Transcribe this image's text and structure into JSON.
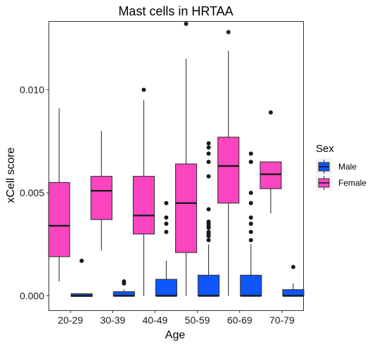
{
  "chart_data": {
    "type": "box",
    "title": "Mast cells in HRTAA",
    "xlabel": "Age",
    "ylabel": "xCell score",
    "categories": [
      "20-29",
      "30-39",
      "40-49",
      "50-59",
      "60-69",
      "70-79"
    ],
    "y_ticks": [
      0,
      0.005,
      0.01
    ],
    "y_tick_labels": [
      "0.000",
      "0.005",
      "0.010"
    ],
    "ylim": [
      -0.0007,
      0.0133
    ],
    "grid": false,
    "legend": {
      "title": "Sex",
      "placement": "right",
      "entries": [
        "Male",
        "Female"
      ]
    },
    "series": [
      {
        "name": "Male",
        "color": "#0f56fb",
        "boxes": [
          {
            "category": "20-29",
            "min": -3e-05,
            "q1": -3e-05,
            "median": 0,
            "q3": 0.0001,
            "max": 0.0001,
            "outliers": [
              0.0017
            ]
          },
          {
            "category": "30-39",
            "min": 0,
            "q1": 0,
            "median": 0,
            "q3": 0.0002,
            "max": 0.0003,
            "outliers": [
              0.0006,
              0.0007
            ]
          },
          {
            "category": "40-49",
            "min": 0,
            "q1": 0,
            "median": 0,
            "q3": 0.0008,
            "max": 0.0017,
            "outliers": [
              0.0031,
              0.0035,
              0.0038,
              0.0045
            ]
          },
          {
            "category": "50-59",
            "min": 0,
            "q1": 0,
            "median": 0,
            "q3": 0.001,
            "max": 0.0025,
            "outliers": [
              0.0027,
              0.0029,
              0.003,
              0.0031,
              0.0033,
              0.0034,
              0.0035,
              0.0036,
              0.0042,
              0.0058,
              0.0065,
              0.0069,
              0.0072,
              0.0074
            ]
          },
          {
            "category": "60-69",
            "min": 0,
            "q1": 0,
            "median": 0,
            "q3": 0.001,
            "max": 0.0025,
            "outliers": [
              0.0027,
              0.0031,
              0.0035,
              0.0038,
              0.0045,
              0.005,
              0.0065,
              0.0069
            ]
          },
          {
            "category": "70-79",
            "min": 0,
            "q1": 0,
            "median": 0,
            "q3": 0.0003,
            "max": 0.0006,
            "outliers": [
              0.0014
            ]
          }
        ]
      },
      {
        "name": "Female",
        "color": "#fb45c1",
        "boxes": [
          {
            "category": "20-29",
            "min": 0.0007,
            "q1": 0.0019,
            "median": 0.0034,
            "q3": 0.0055,
            "max": 0.0091,
            "outliers": []
          },
          {
            "category": "30-39",
            "min": 0.0022,
            "q1": 0.0037,
            "median": 0.0051,
            "q3": 0.0058,
            "max": 0.008,
            "outliers": []
          },
          {
            "category": "40-49",
            "min": 0,
            "q1": 0.003,
            "median": 0.0039,
            "q3": 0.0058,
            "max": 0.0095,
            "outliers": [
              0.01
            ]
          },
          {
            "category": "50-59",
            "min": 0,
            "q1": 0.0021,
            "median": 0.0045,
            "q3": 0.0064,
            "max": 0.0115,
            "outliers": [
              0.0132
            ]
          },
          {
            "category": "60-69",
            "min": 0,
            "q1": 0.0045,
            "median": 0.0063,
            "q3": 0.0077,
            "max": 0.0119,
            "outliers": [
              0.0128
            ]
          },
          {
            "category": "70-79",
            "min": 0.004,
            "q1": 0.0052,
            "median": 0.0059,
            "q3": 0.0065,
            "max": 0.0065,
            "outliers": [
              0.0089
            ]
          }
        ]
      }
    ]
  }
}
